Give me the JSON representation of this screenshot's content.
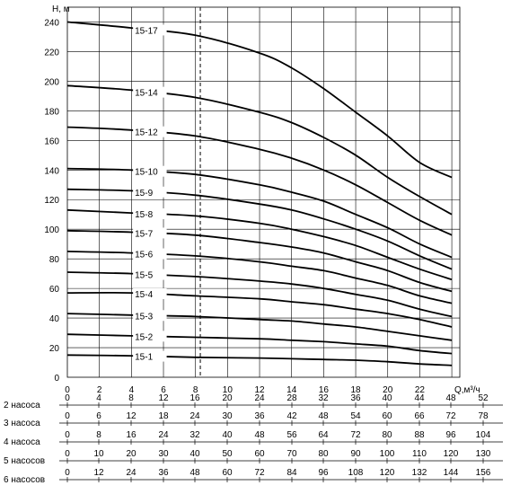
{
  "chart_data": {
    "type": "line",
    "ylabel": "H, м",
    "xlabel": "Q,м³/ч",
    "xlim": [
      0,
      24.5
    ],
    "ylim": [
      0,
      250
    ],
    "x_ticks": [
      0,
      2,
      4,
      6,
      8,
      10,
      12,
      14,
      16,
      18,
      20,
      22
    ],
    "y_ticks": [
      0,
      20,
      40,
      60,
      80,
      100,
      120,
      140,
      160,
      180,
      200,
      220,
      240
    ],
    "grid": true,
    "reference_line_x": 8.3,
    "series": [
      {
        "name": "15-17",
        "x": [
          0,
          4,
          8,
          12,
          14,
          16,
          18,
          20,
          22,
          24
        ],
        "y": [
          240,
          236,
          231,
          219,
          209,
          195,
          179,
          163,
          145,
          135
        ]
      },
      {
        "name": "15-14",
        "x": [
          0,
          4,
          8,
          12,
          14,
          16,
          18,
          20,
          22,
          24
        ],
        "y": [
          197,
          194,
          189,
          179,
          172,
          162,
          150,
          135,
          122,
          110
        ]
      },
      {
        "name": "15-12",
        "x": [
          0,
          4,
          8,
          12,
          14,
          16,
          18,
          20,
          22,
          24
        ],
        "y": [
          169,
          167,
          163,
          154,
          148,
          140,
          130,
          118,
          106,
          96
        ]
      },
      {
        "name": "15-10",
        "x": [
          0,
          4,
          8,
          12,
          14,
          16,
          18,
          20,
          22,
          24
        ],
        "y": [
          141,
          140,
          137,
          130,
          125,
          119,
          110,
          101,
          90,
          81
        ]
      },
      {
        "name": "15-9",
        "x": [
          0,
          4,
          8,
          12,
          14,
          16,
          18,
          20,
          22,
          24
        ],
        "y": [
          127,
          126,
          123,
          117,
          113,
          107,
          100,
          92,
          82,
          73
        ]
      },
      {
        "name": "15-8",
        "x": [
          0,
          4,
          8,
          12,
          14,
          16,
          18,
          20,
          22,
          24
        ],
        "y": [
          113,
          111,
          109,
          104,
          100,
          95,
          89,
          81,
          73,
          66
        ]
      },
      {
        "name": "15-7",
        "x": [
          0,
          4,
          8,
          12,
          14,
          16,
          18,
          20,
          22,
          24
        ],
        "y": [
          99,
          98,
          96,
          91,
          88,
          84,
          78,
          72,
          64,
          58
        ]
      },
      {
        "name": "15-6",
        "x": [
          0,
          4,
          8,
          12,
          14,
          16,
          18,
          20,
          22,
          24
        ],
        "y": [
          85,
          84,
          82,
          78,
          75,
          72,
          67,
          62,
          55,
          50
        ]
      },
      {
        "name": "15-5",
        "x": [
          0,
          4,
          8,
          12,
          14,
          16,
          18,
          20,
          22,
          24
        ],
        "y": [
          71,
          70,
          68,
          65,
          63,
          60,
          56,
          52,
          46,
          41
        ]
      },
      {
        "name": "15-4",
        "x": [
          0,
          4,
          8,
          12,
          14,
          16,
          18,
          20,
          22,
          24
        ],
        "y": [
          57,
          57,
          55,
          53,
          51,
          49,
          46,
          43,
          39,
          34
        ]
      },
      {
        "name": "15-3",
        "x": [
          0,
          4,
          8,
          12,
          14,
          16,
          18,
          20,
          22,
          24
        ],
        "y": [
          43,
          42,
          41,
          39,
          38,
          36,
          34,
          31,
          28,
          25
        ]
      },
      {
        "name": "15-2",
        "x": [
          0,
          4,
          8,
          12,
          14,
          16,
          18,
          20,
          22,
          24
        ],
        "y": [
          29,
          28,
          27,
          26,
          25,
          24,
          22.5,
          21,
          18,
          16
        ]
      },
      {
        "name": "15-1",
        "x": [
          0,
          4,
          8,
          12,
          14,
          16,
          18,
          20,
          22,
          24
        ],
        "y": [
          15,
          14.5,
          13.5,
          13,
          12.5,
          12,
          11.5,
          10.5,
          9,
          8
        ]
      }
    ],
    "pump_table": [
      {
        "label": "2 насоса",
        "values": [
          "0",
          "4",
          "8",
          "12",
          "16",
          "20",
          "24",
          "28",
          "32",
          "36",
          "40",
          "44",
          "48",
          "52"
        ]
      },
      {
        "label": "3 насоса",
        "values": [
          "0",
          "6",
          "12",
          "18",
          "24",
          "30",
          "36",
          "42",
          "48",
          "54",
          "60",
          "66",
          "72",
          "78"
        ]
      },
      {
        "label": "4 насоса",
        "values": [
          "0",
          "8",
          "16",
          "24",
          "32",
          "40",
          "48",
          "56",
          "64",
          "72",
          "80",
          "88",
          "96",
          "104"
        ]
      },
      {
        "label": "5 насосов",
        "values": [
          "0",
          "10",
          "20",
          "30",
          "40",
          "50",
          "60",
          "70",
          "80",
          "90",
          "100",
          "110",
          "120",
          "130"
        ]
      },
      {
        "label": "6 насосов",
        "values": [
          "0",
          "12",
          "24",
          "36",
          "48",
          "60",
          "72",
          "84",
          "96",
          "108",
          "120",
          "132",
          "144",
          "156"
        ]
      }
    ]
  }
}
